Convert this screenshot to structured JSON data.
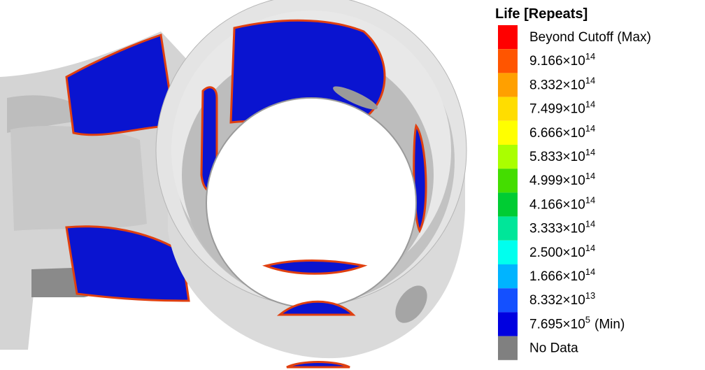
{
  "legend": {
    "title": "Life [Repeats]",
    "entries": [
      {
        "label": "Beyond Cutoff (Max)",
        "color": "#ff0000"
      },
      {
        "base": "9.166×10",
        "exponent": "14",
        "color": "#ff5500"
      },
      {
        "base": "8.332×10",
        "exponent": "14",
        "color": "#ffa000"
      },
      {
        "base": "7.499×10",
        "exponent": "14",
        "color": "#ffdd00"
      },
      {
        "base": "6.666×10",
        "exponent": "14",
        "color": "#ffff00"
      },
      {
        "base": "5.833×10",
        "exponent": "14",
        "color": "#aaff00"
      },
      {
        "base": "4.999×10",
        "exponent": "14",
        "color": "#44dd00"
      },
      {
        "base": "4.166×10",
        "exponent": "14",
        "color": "#00cc33"
      },
      {
        "base": "3.333×10",
        "exponent": "14",
        "color": "#00e699"
      },
      {
        "base": "2.500×10",
        "exponent": "14",
        "color": "#00ffee"
      },
      {
        "base": "1.666×10",
        "exponent": "14",
        "color": "#00b4ff"
      },
      {
        "base": "8.332×10",
        "exponent": "13",
        "color": "#1450ff"
      },
      {
        "base": "7.695×10",
        "exponent": "5",
        "suffix": "(Min)",
        "color": "#0000e0"
      },
      {
        "label": "No Data",
        "color": "#808080"
      }
    ]
  }
}
